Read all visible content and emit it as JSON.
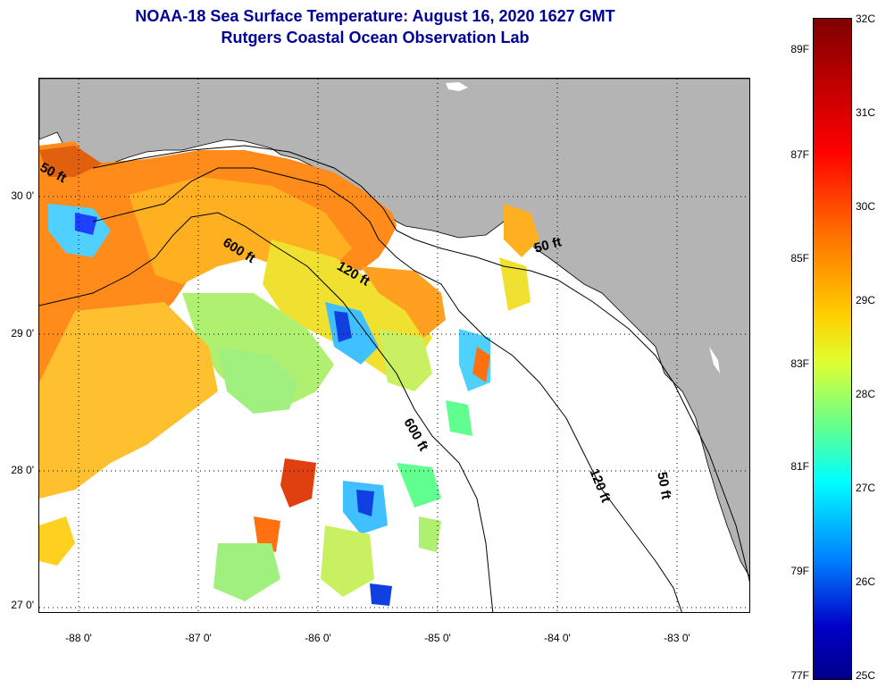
{
  "header": {
    "title": "NOAA-18 Sea Surface Temperature:  August 16, 2020 1627 GMT",
    "subtitle": "Rutgers Coastal Ocean Observation Lab"
  },
  "map": {
    "lat_labels": [
      "30 0'",
      "29 0'",
      "28 0'",
      "27 0'"
    ],
    "lon_labels": [
      "-88 0'",
      "-87 0'",
      "-86 0'",
      "-85 0'",
      "-84 0'",
      "-83 0'"
    ],
    "contour_labels": [
      "50 ft",
      "600 ft",
      "120 ft",
      "50 ft",
      "600 ft",
      "120 ft",
      "50 ft"
    ],
    "colors": {
      "land": "#b4b4b4",
      "water_nodata": "#ffffff",
      "grid": "#000000"
    }
  },
  "colorbar": {
    "celsius": [
      "32C",
      "31C",
      "30C",
      "29C",
      "28C",
      "27C",
      "26C",
      "25C"
    ],
    "fahrenheit": [
      "89F",
      "87F",
      "85F",
      "83F",
      "81F",
      "79F",
      "77F"
    ],
    "range_c": [
      25,
      32
    ],
    "range_f": [
      77,
      89
    ]
  }
}
